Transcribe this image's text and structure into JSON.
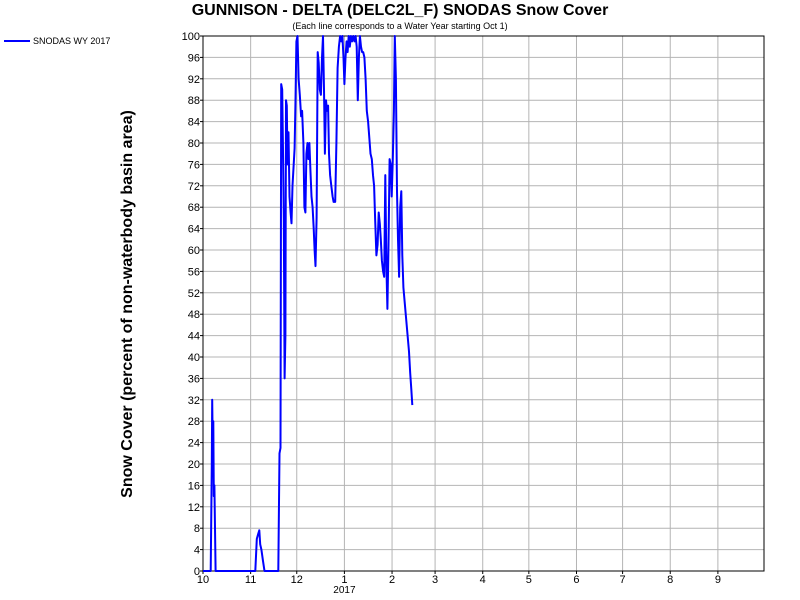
{
  "chart_data": {
    "type": "line",
    "title": "GUNNISON - DELTA (DELC2L_F) SNODAS Snow Cover",
    "subtitle": "(Each line corresponds to a Water Year starting Oct 1)",
    "ylabel": "Snow Cover (percent of non-waterbody basin area)",
    "xlabel": "",
    "ylim": [
      0,
      100
    ],
    "yticks": [
      0,
      4,
      8,
      12,
      16,
      20,
      24,
      28,
      32,
      36,
      40,
      44,
      48,
      52,
      56,
      60,
      64,
      68,
      72,
      76,
      80,
      84,
      88,
      92,
      96,
      100
    ],
    "xticks": [
      {
        "label": "10",
        "x": 0
      },
      {
        "label": "11",
        "x": 31
      },
      {
        "label": "12",
        "x": 61
      },
      {
        "label": "1",
        "x": 92
      },
      {
        "label": "2",
        "x": 123
      },
      {
        "label": "3",
        "x": 151
      },
      {
        "label": "4",
        "x": 182
      },
      {
        "label": "5",
        "x": 212
      },
      {
        "label": "6",
        "x": 243
      },
      {
        "label": "7",
        "x": 273
      },
      {
        "label": "8",
        "x": 304
      },
      {
        "label": "9",
        "x": 335
      }
    ],
    "year_label": {
      "text": "2017",
      "x": 92
    },
    "x_unit": "days since Oct 1",
    "xlim": [
      0,
      365
    ],
    "grid": true,
    "legend_position": "top-left",
    "series": [
      {
        "name": "SNODAS WY 2017",
        "color": "#0000ff",
        "points": [
          [
            0,
            0
          ],
          [
            5,
            0
          ],
          [
            5.7,
            20
          ],
          [
            6,
            32
          ],
          [
            6.3,
            24
          ],
          [
            6.7,
            28
          ],
          [
            7,
            14
          ],
          [
            7.4,
            16
          ],
          [
            7.8,
            8
          ],
          [
            8.2,
            0
          ],
          [
            20,
            0
          ],
          [
            34,
            0
          ],
          [
            35,
            6
          ],
          [
            36,
            7
          ],
          [
            36.6,
            7.6
          ],
          [
            37.2,
            5
          ],
          [
            38,
            4
          ],
          [
            39,
            2
          ],
          [
            40,
            0
          ],
          [
            49,
            0
          ],
          [
            49.8,
            22
          ],
          [
            50.4,
            23
          ],
          [
            50.9,
            91
          ],
          [
            51.5,
            90
          ],
          [
            52,
            80
          ],
          [
            52.6,
            66
          ],
          [
            53.1,
            36
          ],
          [
            53.6,
            44
          ],
          [
            54,
            88
          ],
          [
            54.5,
            87
          ],
          [
            55,
            76
          ],
          [
            55.6,
            82
          ],
          [
            56.3,
            70
          ],
          [
            57,
            67
          ],
          [
            57.6,
            65
          ],
          [
            58.2,
            72
          ],
          [
            59,
            76
          ],
          [
            59.6,
            79
          ],
          [
            60.2,
            88
          ],
          [
            60.8,
            99
          ],
          [
            61.5,
            100
          ],
          [
            62.2,
            92
          ],
          [
            63,
            89
          ],
          [
            63.8,
            85
          ],
          [
            64.5,
            86
          ],
          [
            65.3,
            80
          ],
          [
            66,
            68
          ],
          [
            66.6,
            67
          ],
          [
            67.3,
            78
          ],
          [
            68,
            80
          ],
          [
            68.6,
            77
          ],
          [
            69.2,
            80
          ],
          [
            69.9,
            75
          ],
          [
            70.6,
            70
          ],
          [
            71.3,
            68
          ],
          [
            72,
            64
          ],
          [
            72.6,
            60
          ],
          [
            73.2,
            57
          ],
          [
            73.9,
            66
          ],
          [
            74.6,
            97
          ],
          [
            75.3,
            95
          ],
          [
            76,
            90
          ],
          [
            76.7,
            89
          ],
          [
            77.4,
            96
          ],
          [
            78.1,
            100
          ],
          [
            78.7,
            90
          ],
          [
            79.3,
            78
          ],
          [
            80,
            88
          ],
          [
            80.7,
            86
          ],
          [
            81.4,
            87
          ],
          [
            82,
            78
          ],
          [
            82.7,
            74
          ],
          [
            83.5,
            72
          ],
          [
            84.3,
            70
          ],
          [
            85,
            69
          ],
          [
            86,
            69
          ],
          [
            86.8,
            80
          ],
          [
            87.6,
            94
          ],
          [
            88.4,
            98
          ],
          [
            89.2,
            100
          ],
          [
            90,
            99
          ],
          [
            90.7,
            100
          ],
          [
            91.4,
            96
          ],
          [
            92,
            91
          ],
          [
            92.7,
            96
          ],
          [
            93.4,
            99
          ],
          [
            94.1,
            97
          ],
          [
            94.8,
            100
          ],
          [
            95.5,
            98
          ],
          [
            96.2,
            100
          ],
          [
            97,
            99
          ],
          [
            97.8,
            100
          ],
          [
            98.6,
            99
          ],
          [
            99.3,
            100
          ],
          [
            100,
            98
          ],
          [
            100.7,
            88
          ],
          [
            101.4,
            96
          ],
          [
            102.1,
            100
          ],
          [
            102.8,
            98
          ],
          [
            103.5,
            97
          ],
          [
            104.2,
            97
          ],
          [
            105,
            96
          ],
          [
            105.8,
            92
          ],
          [
            106.6,
            86
          ],
          [
            107.4,
            84
          ],
          [
            108.2,
            81
          ],
          [
            109,
            78
          ],
          [
            109.8,
            77
          ],
          [
            110.6,
            74
          ],
          [
            111.3,
            72
          ],
          [
            112,
            66
          ],
          [
            112.8,
            59
          ],
          [
            113.6,
            61
          ],
          [
            114.3,
            67
          ],
          [
            115,
            65
          ],
          [
            115.7,
            62
          ],
          [
            116.4,
            58
          ],
          [
            117.2,
            56
          ],
          [
            117.9,
            55
          ],
          [
            118.6,
            74
          ],
          [
            119.3,
            57
          ],
          [
            120,
            49
          ],
          [
            120.7,
            61
          ],
          [
            121.4,
            77
          ],
          [
            122.1,
            76
          ],
          [
            122.8,
            70
          ],
          [
            123.5,
            77
          ],
          [
            124.2,
            86
          ],
          [
            124.8,
            100
          ],
          [
            125.5,
            92
          ],
          [
            126.2,
            71
          ],
          [
            126.9,
            62
          ],
          [
            127.6,
            55
          ],
          [
            128.3,
            68
          ],
          [
            129,
            71
          ],
          [
            129.7,
            59
          ],
          [
            130.4,
            53
          ],
          [
            131.3,
            50
          ],
          [
            132.2,
            47
          ],
          [
            133.1,
            44
          ],
          [
            134,
            41
          ],
          [
            134.8,
            37
          ],
          [
            135.5,
            34
          ],
          [
            136.2,
            31
          ]
        ]
      }
    ]
  }
}
